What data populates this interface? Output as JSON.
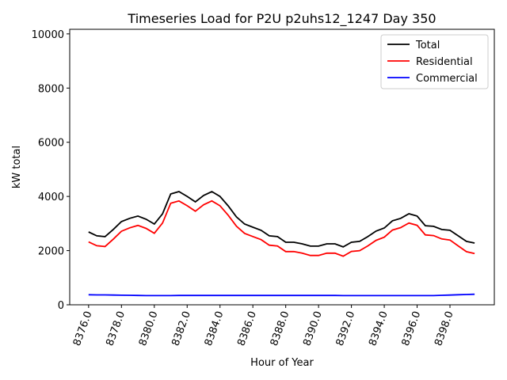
{
  "chart_data": {
    "type": "line",
    "title": "Timeseries Load for P2U p2uhs12_1247  Day 350",
    "xlabel": "Hour of Year",
    "ylabel": "kW total",
    "xlim": [
      8374.85,
      8400.7
    ],
    "ylim": [
      0,
      10170
    ],
    "xticks": [
      8376,
      8378,
      8380,
      8382,
      8384,
      8386,
      8388,
      8390,
      8392,
      8394,
      8396,
      8398
    ],
    "xtick_labels": [
      "8376.0",
      "8378.0",
      "8380.0",
      "8382.0",
      "8384.0",
      "8386.0",
      "8388.0",
      "8390.0",
      "8392.0",
      "8394.0",
      "8396.0",
      "8398.0"
    ],
    "yticks": [
      0,
      2000,
      4000,
      6000,
      8000,
      10000
    ],
    "ytick_labels": [
      "0",
      "2000",
      "4000",
      "6000",
      "8000",
      "10000"
    ],
    "grid": false,
    "legend_position": "top-right",
    "x_start": 8376,
    "x_step": 0.5,
    "series": [
      {
        "name": "Total",
        "color": "#000000",
        "values": [
          2690,
          2545,
          2515,
          2780,
          3070,
          3190,
          3275,
          3160,
          2980,
          3360,
          4090,
          4180,
          4000,
          3800,
          4035,
          4180,
          4000,
          3650,
          3245,
          2980,
          2865,
          2750,
          2545,
          2515,
          2310,
          2310,
          2250,
          2165,
          2165,
          2250,
          2250,
          2135,
          2310,
          2340,
          2515,
          2720,
          2835,
          3100,
          3190,
          3360,
          3275,
          2920,
          2895,
          2780,
          2750,
          2545,
          2340,
          2280
        ]
      },
      {
        "name": "Residential",
        "color": "#ff0000",
        "values": [
          2320,
          2180,
          2150,
          2420,
          2715,
          2840,
          2930,
          2820,
          2640,
          3020,
          3750,
          3835,
          3655,
          3455,
          3690,
          3835,
          3655,
          3305,
          2900,
          2635,
          2520,
          2405,
          2200,
          2170,
          1965,
          1965,
          1905,
          1820,
          1820,
          1905,
          1905,
          1795,
          1970,
          2000,
          2175,
          2380,
          2495,
          2760,
          2850,
          3020,
          2935,
          2580,
          2555,
          2430,
          2390,
          2175,
          1960,
          1890
        ]
      },
      {
        "name": "Commercial",
        "color": "#0000ff",
        "values": [
          370,
          365,
          365,
          360,
          355,
          350,
          345,
          340,
          340,
          340,
          340,
          345,
          345,
          345,
          345,
          345,
          345,
          345,
          345,
          345,
          345,
          345,
          345,
          345,
          345,
          345,
          345,
          345,
          345,
          345,
          345,
          340,
          340,
          340,
          340,
          340,
          340,
          340,
          340,
          340,
          340,
          340,
          340,
          350,
          360,
          370,
          380,
          390
        ]
      }
    ]
  }
}
